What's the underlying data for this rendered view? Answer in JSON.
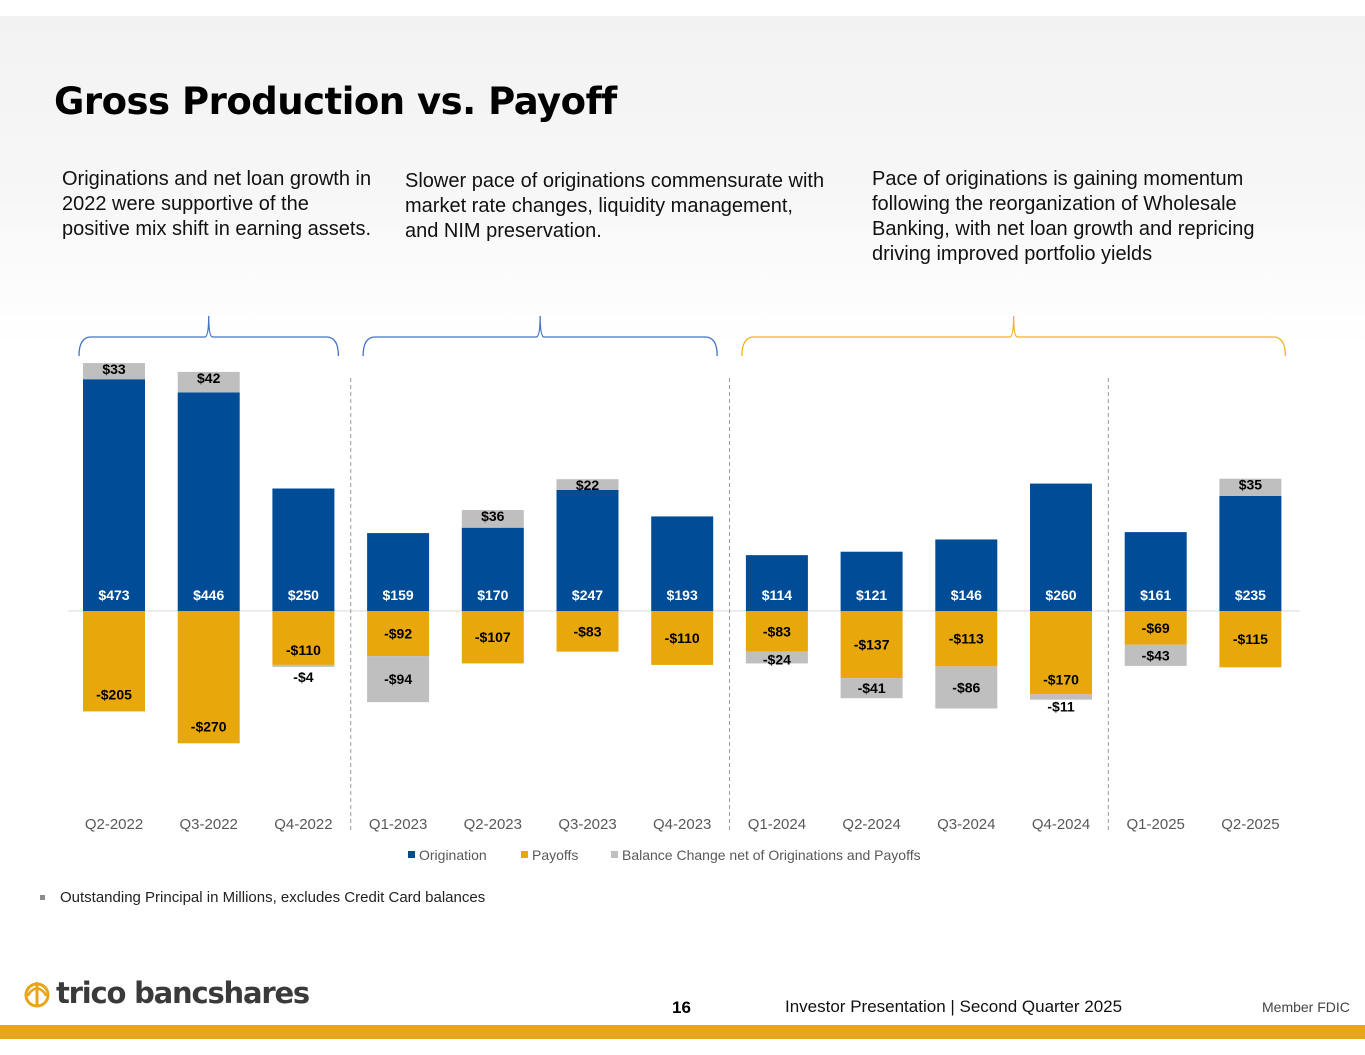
{
  "slide": {
    "title": "Gross Production vs. Payoff",
    "notes": [
      "Originations and net loan growth in 2022 were supportive of the positive mix shift in earning assets.",
      "Slower pace of originations commensurate with market rate changes, liquidity management, and NIM preservation.",
      "Pace of originations is gaining momentum following the reorganization of Wholesale Banking, with net loan growth and repricing driving improved portfolio yields"
    ],
    "footnote": "Outstanding Principal in Millions, excludes Credit Card balances",
    "page_number": "16",
    "footer_caption": "Investor Presentation  |  Second Quarter 2025",
    "member_fdic": "Member FDIC",
    "logo_text": "trico bancshares"
  },
  "colors": {
    "origination": "#004C97",
    "payoffs": "#E8A80C",
    "balance": "#BFBFBF",
    "bracket_blue": "#4472C4",
    "bracket_gold": "#F2B320",
    "bottom_bar": "#E8A51A"
  },
  "chart_data": {
    "type": "bar",
    "stacked": true,
    "categories": [
      "Q2-2022",
      "Q3-2022",
      "Q4-2022",
      "Q1-2023",
      "Q2-2023",
      "Q3-2023",
      "Q4-2023",
      "Q1-2024",
      "Q2-2024",
      "Q3-2024",
      "Q4-2024",
      "Q1-2025",
      "Q2-2025"
    ],
    "series": [
      {
        "name": "Origination",
        "values": [
          473,
          446,
          250,
          159,
          170,
          247,
          193,
          114,
          121,
          146,
          260,
          161,
          235
        ]
      },
      {
        "name": "Payoffs",
        "values": [
          -205,
          -270,
          -110,
          -92,
          -107,
          -83,
          -110,
          -83,
          -137,
          -113,
          -170,
          -69,
          -115
        ]
      },
      {
        "name": "Balance Change net of Originations and Payoffs",
        "values": [
          33,
          42,
          -4,
          -94,
          36,
          22,
          null,
          -24,
          -41,
          -86,
          -11,
          -43,
          35
        ]
      }
    ],
    "value_labels": {
      "Origination": [
        "$473",
        "$446",
        "$250",
        "$159",
        "$170",
        "$247",
        "$193",
        "$114",
        "$121",
        "$146",
        "$260",
        "$161",
        "$235"
      ],
      "Payoffs": [
        "-$205",
        "-$270",
        "-$110",
        "-$92",
        "-$107",
        "-$83",
        "-$110",
        "-$83",
        "-$137",
        "-$113",
        "-$170",
        "-$69",
        "-$115"
      ],
      "Balance": [
        "$33",
        "$42",
        "-$4",
        "-$94",
        "$36",
        "$22",
        "",
        "-$24",
        "-$41",
        "-$86",
        "-$11",
        "-$43",
        "$35"
      ]
    },
    "period_dividers_after": [
      "Q4-2022",
      "Q4-2023",
      "Q4-2024"
    ],
    "ylim": [
      -400,
      500
    ],
    "legend_position": "bottom",
    "bracket_groups": [
      {
        "from": "Q2-2022",
        "to": "Q4-2022",
        "color": "blue"
      },
      {
        "from": "Q1-2023",
        "to": "Q4-2023",
        "color": "blue"
      },
      {
        "from": "Q1-2024",
        "to": "Q2-2025",
        "color": "gold"
      }
    ]
  }
}
